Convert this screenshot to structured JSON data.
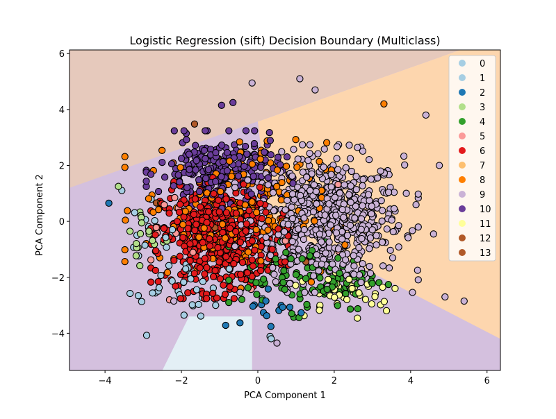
{
  "chart_data": {
    "type": "scatter",
    "title": "Logistic Regression (sift) Decision Boundary (Multiclass)",
    "xlabel": "PCA Component 1",
    "ylabel": "PCA Component 2",
    "xlim": [
      -4.93,
      6.35
    ],
    "ylim": [
      -5.33,
      6.13
    ],
    "xticks": [
      -4,
      -2,
      0,
      2,
      4,
      6
    ],
    "yticks": [
      -4,
      -2,
      0,
      2,
      4,
      6
    ],
    "grid": false,
    "legend_position": "top-right",
    "classes": [
      {
        "label": "0",
        "color": "#a6cee3"
      },
      {
        "label": "1",
        "color": "#a6cee3"
      },
      {
        "label": "2",
        "color": "#1f78b4"
      },
      {
        "label": "3",
        "color": "#b2df8a"
      },
      {
        "label": "4",
        "color": "#33a02c"
      },
      {
        "label": "5",
        "color": "#fb9a99"
      },
      {
        "label": "6",
        "color": "#e31a1c"
      },
      {
        "label": "7",
        "color": "#fdbf6f"
      },
      {
        "label": "8",
        "color": "#ff7f00"
      },
      {
        "label": "9",
        "color": "#cab2d6"
      },
      {
        "label": "10",
        "color": "#6a3d9a"
      },
      {
        "label": "11",
        "color": "#ffff99"
      },
      {
        "label": "12",
        "color": "#b15928"
      },
      {
        "label": "13",
        "color": "#b15928"
      }
    ],
    "decision_regions": [
      {
        "class": "9",
        "color": "#d4c0de",
        "polygon": [
          [
            -4.93,
            -5.33
          ],
          [
            6.35,
            -5.33
          ],
          [
            6.35,
            6.13
          ],
          [
            -4.93,
            6.13
          ]
        ]
      },
      {
        "class": "13",
        "color": "#e6c9bc",
        "polygon": [
          [
            -4.93,
            1.2
          ],
          [
            5.3,
            6.13
          ],
          [
            -4.93,
            6.13
          ]
        ]
      },
      {
        "class": "7",
        "color": "#fdd6ae",
        "polygon": [
          [
            0,
            3.57
          ],
          [
            5.3,
            6.13
          ],
          [
            6.35,
            6.13
          ],
          [
            6.35,
            -4.2
          ],
          [
            3.8,
            -2.4
          ],
          [
            0.3,
            0
          ]
        ]
      },
      {
        "class": "0",
        "color": "#e3eff5",
        "polygon": [
          [
            -2.5,
            -5.33
          ],
          [
            -1.8,
            -3.4
          ],
          [
            -0.15,
            -3.4
          ],
          [
            -0.15,
            -5.33
          ]
        ]
      }
    ],
    "point_clusters": [
      {
        "class": 9,
        "center": [
          1.8,
          0.1
        ],
        "std": [
          1.0,
          1.1
        ],
        "count": 650
      },
      {
        "class": 6,
        "center": [
          -1.0,
          -0.6
        ],
        "std": [
          0.75,
          0.9
        ],
        "count": 520
      },
      {
        "class": 10,
        "center": [
          -1.0,
          1.8
        ],
        "std": [
          0.8,
          0.6
        ],
        "count": 240
      },
      {
        "class": 8,
        "center": [
          -0.6,
          0.4
        ],
        "std": [
          1.2,
          1.2
        ],
        "count": 200
      },
      {
        "class": 4,
        "center": [
          1.4,
          -2.0
        ],
        "std": [
          0.9,
          0.6
        ],
        "count": 110
      },
      {
        "class": 11,
        "center": [
          2.4,
          -2.5
        ],
        "std": [
          0.7,
          0.4
        ],
        "count": 40
      },
      {
        "class": 1,
        "center": [
          -1.6,
          -2.6
        ],
        "std": [
          0.8,
          0.7
        ],
        "count": 30
      },
      {
        "class": 0,
        "center": [
          -2.6,
          -1.0
        ],
        "std": [
          0.4,
          1.0
        ],
        "count": 20
      },
      {
        "class": 2,
        "center": [
          0.2,
          -3.1
        ],
        "std": [
          0.6,
          0.4
        ],
        "count": 15
      },
      {
        "class": 3,
        "center": [
          -2.9,
          -0.6
        ],
        "std": [
          0.3,
          0.6
        ],
        "count": 20
      },
      {
        "class": 5,
        "center": [
          -1.0,
          0.0
        ],
        "std": [
          1.3,
          1.3
        ],
        "count": 20
      },
      {
        "class": 12,
        "center": [
          -1.0,
          0.6
        ],
        "std": [
          1.3,
          1.2
        ],
        "count": 6
      },
      {
        "class": 13,
        "center": [
          -1.0,
          0.6
        ],
        "std": [
          1.3,
          1.2
        ],
        "count": 4
      }
    ],
    "notable_points": [
      {
        "class": 2,
        "x": -3.9,
        "y": 0.65
      },
      {
        "class": 3,
        "x": -3.65,
        "y": 1.25
      },
      {
        "class": 9,
        "x": 1.1,
        "y": 5.1
      },
      {
        "class": 9,
        "x": -0.15,
        "y": 4.95
      },
      {
        "class": 9,
        "x": 1.5,
        "y": 4.7
      },
      {
        "class": 9,
        "x": 5.4,
        "y": -2.85
      },
      {
        "class": 9,
        "x": 4.9,
        "y": -2.7
      },
      {
        "class": 9,
        "x": 4.4,
        "y": 3.8
      },
      {
        "class": 9,
        "x": 4.75,
        "y": 2.0
      },
      {
        "class": 9,
        "x": 4.6,
        "y": -0.45
      },
      {
        "class": 10,
        "x": -0.95,
        "y": 4.15
      },
      {
        "class": 10,
        "x": -0.65,
        "y": 4.25
      },
      {
        "class": 8,
        "x": 3.3,
        "y": 4.2
      },
      {
        "class": 9,
        "x": -2.2,
        "y": -2.85
      },
      {
        "class": 1,
        "x": 0.35,
        "y": -4.2
      },
      {
        "class": 9,
        "x": 0.5,
        "y": -4.35
      }
    ]
  }
}
